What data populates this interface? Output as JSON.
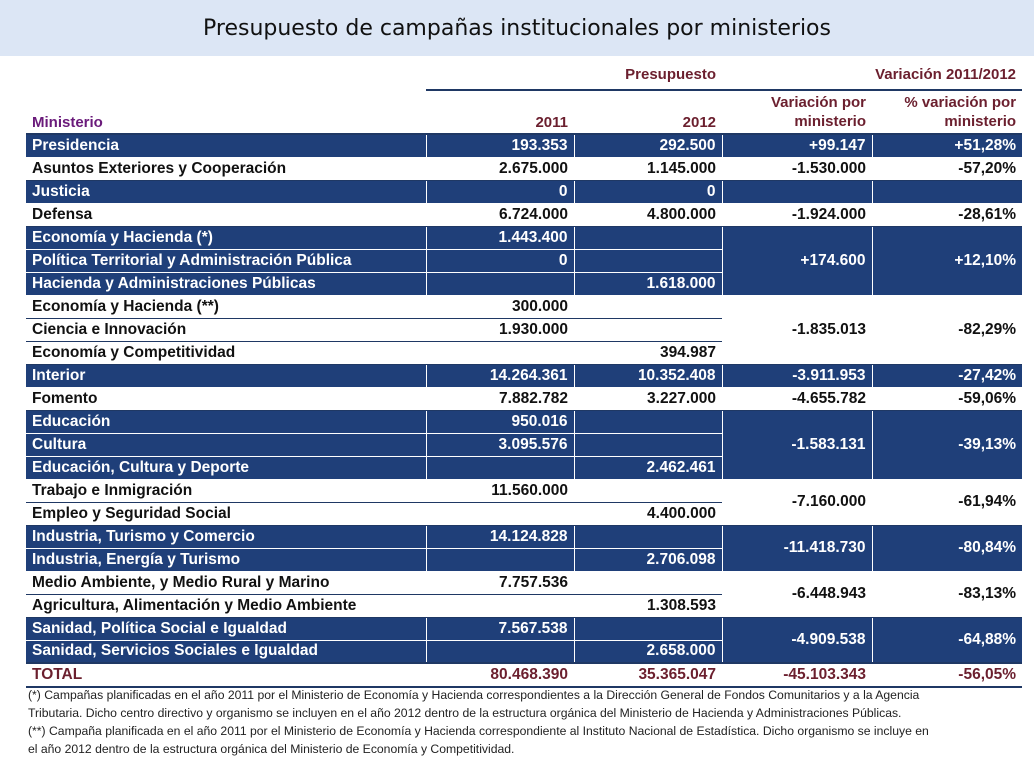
{
  "title": "Presupuesto de campañas institucionales por ministerios",
  "header": {
    "group_budget": "Presupuesto",
    "group_variation": "Variación 2011/2012",
    "col_ministry": "Ministerio",
    "col_2011": "2011",
    "col_2012": "2012",
    "col_var_line1": "Variación por",
    "col_var_line2": "ministerio",
    "col_pct_line1": "% variación por",
    "col_pct_line2": "ministerio"
  },
  "rows": [
    {
      "name": "Presidencia",
      "y2011": "193.353",
      "y2012": "292.500",
      "var": "+99.147",
      "pct": "+51,28%"
    },
    {
      "name": "Asuntos Exteriores y Cooperación",
      "y2011": "2.675.000",
      "y2012": "1.145.000",
      "var": "-1.530.000",
      "pct": "-57,20%"
    },
    {
      "name": "Justicia",
      "y2011": "0",
      "y2012": "0",
      "var": "",
      "pct": ""
    },
    {
      "name": "Defensa",
      "y2011": "6.724.000",
      "y2012": "4.800.000",
      "var": "-1.924.000",
      "pct": "-28,61%"
    },
    {
      "name": "Economía y Hacienda (*)",
      "y2011": "1.443.400",
      "y2012": ""
    },
    {
      "name": "Política Territorial y Administración Pública",
      "y2011": "0",
      "y2012": ""
    },
    {
      "name": "Hacienda y Administraciones Públicas",
      "y2011": "",
      "y2012": "1.618.000"
    },
    {
      "name": "Economía y Hacienda (**)",
      "y2011": "300.000",
      "y2012": ""
    },
    {
      "name": "Ciencia e Innovación",
      "y2011": "1.930.000",
      "y2012": ""
    },
    {
      "name": "Economía y Competitividad",
      "y2011": "",
      "y2012": "394.987"
    },
    {
      "name": "Interior",
      "y2011": "14.264.361",
      "y2012": "10.352.408",
      "var": "-3.911.953",
      "pct": "-27,42%"
    },
    {
      "name": "Fomento",
      "y2011": "7.882.782",
      "y2012": "3.227.000",
      "var": "-4.655.782",
      "pct": "-59,06%"
    },
    {
      "name": "Educación",
      "y2011": "950.016",
      "y2012": ""
    },
    {
      "name": "Cultura",
      "y2011": "3.095.576",
      "y2012": ""
    },
    {
      "name": "Educación, Cultura y Deporte",
      "y2011": "",
      "y2012": "2.462.461"
    },
    {
      "name": "Trabajo e Inmigración",
      "y2011": "11.560.000",
      "y2012": ""
    },
    {
      "name": "Empleo y Seguridad Social",
      "y2011": "",
      "y2012": "4.400.000"
    },
    {
      "name": "Industria, Turismo y Comercio",
      "y2011": "14.124.828",
      "y2012": ""
    },
    {
      "name": "Industria, Energía y Turismo",
      "y2011": "",
      "y2012": "2.706.098"
    },
    {
      "name": "Medio Ambiente, y Medio Rural y Marino",
      "y2011": "7.757.536",
      "y2012": ""
    },
    {
      "name": "Agricultura, Alimentación y Medio Ambiente",
      "y2011": "",
      "y2012": "1.308.593"
    },
    {
      "name": "Sanidad, Política Social e Igualdad",
      "y2011": "7.567.538",
      "y2012": ""
    },
    {
      "name": "Sanidad, Servicios Sociales e Igualdad",
      "y2011": "",
      "y2012": "2.658.000"
    }
  ],
  "groups": [
    {
      "var": "+174.600",
      "pct": "+12,10%"
    },
    {
      "var": "-1.835.013",
      "pct": "-82,29%"
    },
    {
      "var": "-1.583.131",
      "pct": "-39,13%"
    },
    {
      "var": "-7.160.000",
      "pct": "-61,94%"
    },
    {
      "var": "-11.418.730",
      "pct": "-80,84%"
    },
    {
      "var": "-6.448.943",
      "pct": "-83,13%"
    },
    {
      "var": "-4.909.538",
      "pct": "-64,88%"
    }
  ],
  "total": {
    "name": "TOTAL",
    "y2011": "80.468.390",
    "y2012": "35.365.047",
    "var": "-45.103.343",
    "pct": "-56,05%"
  },
  "notes": {
    "note1_line1": "(*) Campañas planificadas en el año 2011 por el Ministerio de Economía y Hacienda correspondientes a la Dirección General de Fondos Comunitarios y a la Agencia",
    "note1_line2": "Tributaria. Dicho centro directivo y organismo se incluyen en el año 2012 dentro de la estructura orgánica del Ministerio de Hacienda y Administraciones Públicas.",
    "note2_line1": "(**) Campaña planificada en el año 2011 por el Ministerio de Economía y Hacienda correspondiente al Instituto Nacional de Estadística. Dicho organismo se incluye en",
    "note2_line2": "el año 2012  dentro de la estructura orgánica del Ministerio de Economía y Competitividad."
  }
}
